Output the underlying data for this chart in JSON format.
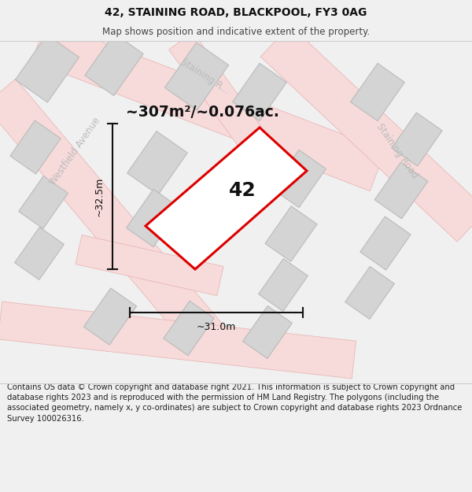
{
  "title": "42, STAINING ROAD, BLACKPOOL, FY3 0AG",
  "subtitle": "Map shows position and indicative extent of the property.",
  "footer": "Contains OS data © Crown copyright and database right 2021. This information is subject to Crown copyright and database rights 2023 and is reproduced with the permission of HM Land Registry. The polygons (including the associated geometry, namely x, y co-ordinates) are subject to Crown copyright and database rights 2023 Ordnance Survey 100026316.",
  "area_label": "~307m²/~0.076ac.",
  "width_label": "~31.0m",
  "height_label": "~32.5m",
  "plot_number": "42",
  "title_fontsize": 10,
  "subtitle_fontsize": 8.5,
  "footer_fontsize": 7.2,
  "bg_color": "#f0f0f0",
  "map_bg": "#f8f8f8",
  "road_fill": "#f7dada",
  "road_edge": "#e8b0b0",
  "building_fill": "#d4d4d4",
  "building_edge": "#bbbbbb",
  "plot_color": "#dd0000",
  "dim_color": "#111111",
  "road_label_color": "#bbbbbb",
  "street_label_color": "#aaaaaa",
  "map_border_color": "#cccccc"
}
